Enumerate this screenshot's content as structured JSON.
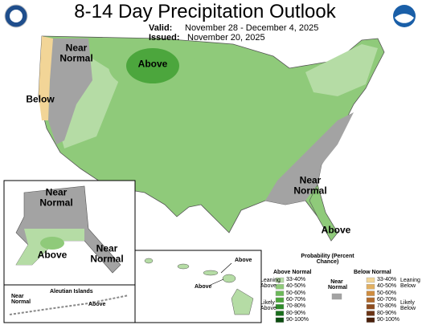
{
  "header": {
    "title": "8-14 Day Precipitation Outlook",
    "valid_label": "Valid:",
    "valid_dates": "November 28 - December 4, 2025",
    "issued_label": "Issued:",
    "issued_date": "November 20, 2025"
  },
  "map_labels": {
    "west_near_normal": "Near Normal",
    "north_above": "Above",
    "coast_below": "Below",
    "southeast_near_normal": "Near Normal",
    "florida_above": "Above"
  },
  "alaska": {
    "north_near_normal": "Near Normal",
    "south_above": "Above",
    "southeast_near_normal": "Near Normal",
    "aleutian_title": "Aleutian Islands",
    "aleutian_near_normal": "Near Normal",
    "aleutian_above": "Above"
  },
  "hawaii": {
    "north_above": "Above",
    "south_above": "Above"
  },
  "legend": {
    "title": "Probability (Percent Chance)",
    "above_header": "Above Normal",
    "below_header": "Below Normal",
    "leaning_above": "Leaning Above",
    "likely_above": "Likely Above",
    "near_normal": "Near Normal",
    "leaning_below": "Leaning Below",
    "likely_below": "Likely Below",
    "above_ranges": [
      "33-40%",
      "40-50%",
      "50-60%",
      "60-70%",
      "70-80%",
      "80-90%",
      "90-100%"
    ],
    "below_ranges": [
      "33-40%",
      "40-50%",
      "50-60%",
      "60-70%",
      "70-80%",
      "80-90%",
      "90-100%"
    ],
    "above_colors": [
      "#b5dca5",
      "#8fca7a",
      "#6cb95a",
      "#4ca63d",
      "#2f8b2b",
      "#1a6e1c",
      "#0b4d10"
    ],
    "below_colors": [
      "#f2d597",
      "#e2b062",
      "#cf8c3f",
      "#b06a2c",
      "#8e4d1f",
      "#6b3415",
      "#4a200b"
    ],
    "near_color": "#a3a3a3"
  }
}
